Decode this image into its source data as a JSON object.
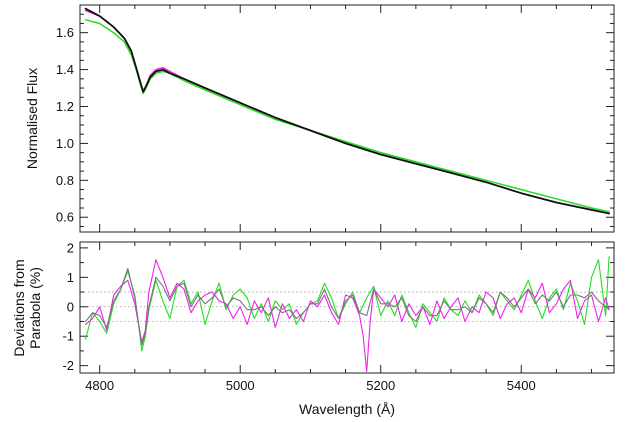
{
  "chart_data": [
    {
      "panel": "top",
      "type": "line",
      "title": "",
      "xlabel": "",
      "ylabel": "Normalised Flux",
      "xlim": [
        4772,
        5532
      ],
      "ylim": [
        0.52,
        1.75
      ],
      "yticks": [
        0.6,
        0.8,
        1.0,
        1.2,
        1.4,
        1.6
      ],
      "ytick_labels": [
        "0.6",
        "0.8",
        "1.0",
        "1.2",
        "1.4",
        "1.6"
      ],
      "minor_ystep": 0.05,
      "xticks": [
        4800,
        5000,
        5200,
        5400
      ],
      "minor_xstep": 50,
      "grid": false,
      "series": [
        {
          "color": "#22dd22",
          "x": [
            4780,
            4800,
            4820,
            4835,
            4845,
            4852,
            4858,
            4862,
            4866,
            4872,
            4880,
            4890,
            4900,
            4920,
            4950,
            5000,
            5050,
            5100,
            5150,
            5200,
            5250,
            5300,
            5350,
            5400,
            5450,
            5500,
            5525
          ],
          "y": [
            1.67,
            1.65,
            1.6,
            1.55,
            1.48,
            1.4,
            1.32,
            1.27,
            1.3,
            1.35,
            1.38,
            1.39,
            1.38,
            1.34,
            1.29,
            1.21,
            1.13,
            1.07,
            1.01,
            0.95,
            0.9,
            0.85,
            0.8,
            0.75,
            0.7,
            0.65,
            0.63
          ]
        },
        {
          "color": "#ee22ee",
          "x": [
            4780,
            4800,
            4820,
            4835,
            4845,
            4852,
            4858,
            4862,
            4866,
            4872,
            4880,
            4890,
            4900,
            4920,
            4950,
            5000,
            5050,
            5100,
            5150,
            5200,
            5250,
            5300,
            5350,
            5400,
            5450,
            5500,
            5525
          ],
          "y": [
            1.72,
            1.69,
            1.63,
            1.57,
            1.5,
            1.41,
            1.33,
            1.28,
            1.31,
            1.37,
            1.4,
            1.41,
            1.39,
            1.35,
            1.3,
            1.22,
            1.14,
            1.07,
            1.0,
            0.94,
            0.89,
            0.84,
            0.79,
            0.73,
            0.68,
            0.64,
            0.62
          ]
        },
        {
          "color": "#111111",
          "x": [
            4780,
            4800,
            4820,
            4835,
            4845,
            4852,
            4858,
            4862,
            4866,
            4872,
            4880,
            4890,
            4900,
            4920,
            4950,
            5000,
            5050,
            5100,
            5150,
            5200,
            5250,
            5300,
            5350,
            5400,
            5450,
            5500,
            5525
          ],
          "y": [
            1.73,
            1.69,
            1.63,
            1.57,
            1.5,
            1.41,
            1.33,
            1.28,
            1.31,
            1.36,
            1.39,
            1.4,
            1.38,
            1.35,
            1.3,
            1.22,
            1.14,
            1.07,
            1.0,
            0.94,
            0.89,
            0.84,
            0.79,
            0.73,
            0.68,
            0.64,
            0.62
          ]
        }
      ]
    },
    {
      "panel": "bottom",
      "type": "line",
      "title": "",
      "xlabel": "Wavelength (Å)",
      "ylabel_lines": [
        "Deviations from",
        "Parabola (%)"
      ],
      "xlim": [
        4772,
        5532
      ],
      "ylim": [
        -2.25,
        2.2
      ],
      "yticks": [
        -2,
        -1,
        0,
        1,
        2
      ],
      "ytick_labels": [
        "-2",
        "-1",
        "0",
        "1",
        "2"
      ],
      "minor_ystep": 0.5,
      "xticks": [
        4800,
        5000,
        5200,
        5400
      ],
      "xtick_labels": [
        "4800",
        "5000",
        "5200",
        "5400"
      ],
      "minor_xstep": 50,
      "reference_lines": [
        0.5,
        0,
        -0.5
      ],
      "grid": false,
      "series": [
        {
          "color": "#22dd22",
          "x": [
            4780,
            4790,
            4800,
            4810,
            4820,
            4830,
            4840,
            4850,
            4860,
            4865,
            4870,
            4880,
            4890,
            4900,
            4910,
            4920,
            4930,
            4940,
            4950,
            4960,
            4970,
            4980,
            4990,
            5000,
            5010,
            5020,
            5030,
            5040,
            5050,
            5060,
            5070,
            5080,
            5090,
            5100,
            5110,
            5120,
            5130,
            5140,
            5150,
            5160,
            5170,
            5180,
            5190,
            5200,
            5210,
            5220,
            5230,
            5240,
            5250,
            5260,
            5270,
            5280,
            5290,
            5300,
            5310,
            5320,
            5330,
            5340,
            5350,
            5360,
            5370,
            5380,
            5390,
            5400,
            5410,
            5420,
            5430,
            5440,
            5450,
            5460,
            5470,
            5480,
            5490,
            5500,
            5510,
            5520,
            5525
          ],
          "y": [
            -1.1,
            -0.2,
            -0.5,
            -0.9,
            0.1,
            0.6,
            1.2,
            0.4,
            -1.5,
            -1.0,
            -0.1,
            0.9,
            0.2,
            -0.4,
            0.7,
            0.9,
            0.1,
            0.5,
            -0.6,
            0.2,
            0.8,
            -0.1,
            0.4,
            0.6,
            0.3,
            -0.4,
            0.1,
            -0.5,
            0.2,
            -0.1,
            0.1,
            -0.6,
            -0.2,
            0.1,
            0.2,
            0.8,
            0.3,
            -0.4,
            0.1,
            0.5,
            -0.2,
            0.3,
            0.7,
            -0.3,
            0.2,
            -0.3,
            0.4,
            -0.2,
            -0.7,
            0.1,
            -0.2,
            -0.5,
            0.3,
            -0.1,
            -0.3,
            0.2,
            -0.2,
            0.4,
            0.1,
            -0.3,
            0.5,
            0.2,
            -0.1,
            0.4,
            0.9,
            0.2,
            -0.4,
            0.3,
            0.6,
            -0.1,
            0.8,
            0.2,
            -0.6,
            1.0,
            1.6,
            -0.3,
            1.7
          ]
        },
        {
          "color": "#ee22ee",
          "x": [
            4780,
            4790,
            4800,
            4810,
            4820,
            4830,
            4840,
            4850,
            4860,
            4865,
            4870,
            4880,
            4890,
            4900,
            4910,
            4920,
            4930,
            4940,
            4950,
            4960,
            4970,
            4980,
            4990,
            5000,
            5010,
            5020,
            5030,
            5040,
            5050,
            5060,
            5070,
            5080,
            5090,
            5100,
            5110,
            5120,
            5130,
            5140,
            5150,
            5160,
            5170,
            5175,
            5180,
            5185,
            5190,
            5200,
            5210,
            5220,
            5230,
            5240,
            5250,
            5260,
            5270,
            5280,
            5290,
            5300,
            5310,
            5320,
            5330,
            5340,
            5350,
            5360,
            5370,
            5380,
            5390,
            5400,
            5410,
            5420,
            5430,
            5440,
            5450,
            5460,
            5470,
            5480,
            5490,
            5500,
            5510,
            5520,
            5525
          ],
          "y": [
            -0.6,
            -0.4,
            0.0,
            -0.8,
            0.4,
            0.7,
            0.9,
            0.1,
            -1.2,
            -0.8,
            0.5,
            1.6,
            1.0,
            0.3,
            0.8,
            0.6,
            -0.2,
            0.2,
            0.4,
            0.5,
            0.2,
            0.1,
            -0.4,
            0.0,
            -0.6,
            0.2,
            -0.2,
            0.3,
            -0.7,
            0.1,
            -0.4,
            -0.1,
            -0.5,
            0.2,
            0.0,
            0.4,
            -0.2,
            -0.6,
            0.4,
            0.3,
            -0.3,
            -1.0,
            -2.2,
            -0.5,
            0.6,
            0.3,
            0.0,
            0.4,
            -0.5,
            0.1,
            -0.3,
            0.0,
            -0.6,
            0.2,
            -0.4,
            0.0,
            0.3,
            -0.5,
            0.0,
            -0.2,
            0.5,
            0.3,
            -0.4,
            0.1,
            0.3,
            -0.2,
            0.6,
            0.3,
            0.8,
            -0.2,
            0.1,
            0.6,
            0.9,
            -0.4,
            0.2,
            0.4,
            -0.5,
            0.3,
            -0.1
          ]
        },
        {
          "color": "#777777",
          "x": [
            4780,
            4790,
            4800,
            4810,
            4820,
            4830,
            4840,
            4850,
            4860,
            4865,
            4870,
            4880,
            4890,
            4900,
            4910,
            4920,
            4930,
            4940,
            4950,
            4960,
            4970,
            4980,
            4990,
            5000,
            5010,
            5020,
            5030,
            5040,
            5050,
            5060,
            5070,
            5080,
            5090,
            5100,
            5110,
            5120,
            5130,
            5140,
            5150,
            5160,
            5170,
            5180,
            5190,
            5200,
            5210,
            5220,
            5230,
            5240,
            5250,
            5260,
            5270,
            5280,
            5290,
            5300,
            5310,
            5320,
            5330,
            5340,
            5350,
            5360,
            5370,
            5380,
            5390,
            5400,
            5410,
            5420,
            5430,
            5440,
            5450,
            5460,
            5470,
            5480,
            5490,
            5500,
            5510,
            5520,
            5525
          ],
          "y": [
            -0.5,
            -0.2,
            -0.3,
            -0.7,
            0.2,
            0.6,
            1.3,
            0.3,
            -1.3,
            -0.9,
            0.0,
            1.0,
            0.7,
            0.2,
            0.7,
            0.8,
            0.0,
            0.4,
            0.1,
            0.3,
            0.6,
            0.0,
            0.3,
            0.2,
            -0.1,
            -0.1,
            0.0,
            -0.3,
            0.0,
            -0.2,
            -0.1,
            -0.4,
            -0.2,
            0.1,
            0.1,
            0.6,
            0.0,
            -0.4,
            0.2,
            0.4,
            -0.2,
            -0.3,
            0.6,
            0.1,
            0.1,
            0.0,
            0.3,
            -0.3,
            -0.5,
            0.0,
            -0.3,
            -0.3,
            0.2,
            -0.1,
            -0.1,
            0.0,
            -0.2,
            0.3,
            0.1,
            -0.2,
            0.5,
            0.3,
            0.0,
            0.3,
            0.6,
            0.1,
            0.4,
            0.2,
            0.5,
            0.0,
            0.4,
            0.4,
            0.3,
            0.5,
            0.2,
            0.0,
            -0.1
          ]
        }
      ]
    }
  ]
}
